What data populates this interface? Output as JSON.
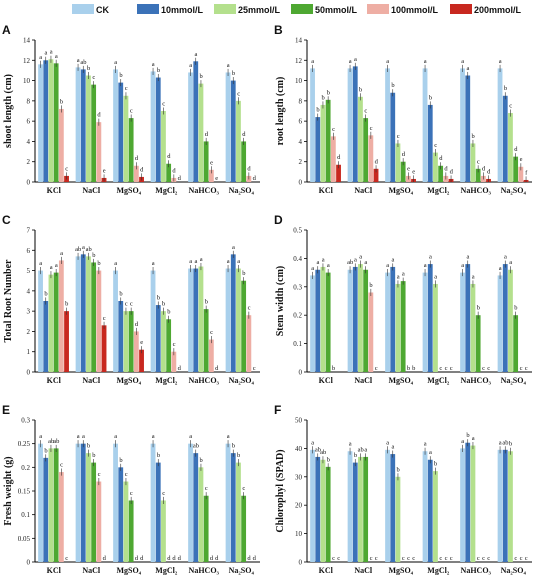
{
  "treatments": [
    "CK",
    "10mmol/L",
    "25mmol/L",
    "50mmol/L",
    "100mmol/L",
    "200mmol/L"
  ],
  "colors": [
    "#a9d0ec",
    "#3b72b8",
    "#b4e08d",
    "#4ea832",
    "#eeaea4",
    "#c8281f"
  ],
  "categories": [
    "KCl",
    "NaCl",
    "MgSO₄",
    "MgCl₂",
    "NaHCO₃",
    "Na₂SO₄"
  ],
  "chart_data": [
    {
      "panel": "A",
      "type": "bar",
      "ylabel": "shoot length (cm)",
      "ylim": [
        0,
        14
      ],
      "yticks": [
        0,
        2,
        4,
        6,
        8,
        10,
        12,
        14
      ],
      "categories": [
        "KCl",
        "NaCl",
        "MgSO₄",
        "MgCl₂",
        "NaHCO₃",
        "Na₂SO₄"
      ],
      "series": [
        {
          "name": "CK",
          "values": [
            11.6,
            11.3,
            11.1,
            10.9,
            10.8,
            10.8
          ],
          "letters": [
            "a",
            "a",
            "a",
            "a",
            "a",
            "a"
          ]
        },
        {
          "name": "10mmol/L",
          "values": [
            12.0,
            11.1,
            9.8,
            10.3,
            11.9,
            10.0
          ],
          "letters": [
            "a",
            "ab",
            "b",
            "b",
            "a",
            "b"
          ]
        },
        {
          "name": "25mmol/L",
          "values": [
            12.1,
            10.5,
            8.5,
            7.0,
            9.7,
            8.0
          ],
          "letters": [
            "a",
            "b",
            "c",
            "c",
            "b",
            "c"
          ]
        },
        {
          "name": "50mmol/L",
          "values": [
            11.7,
            9.6,
            6.3,
            1.8,
            4.0,
            4.0
          ],
          "letters": [
            "a",
            "c",
            "c",
            "d",
            "d",
            "d"
          ]
        },
        {
          "name": "100mmol/L",
          "values": [
            7.2,
            5.9,
            1.6,
            0.4,
            1.2,
            0.6
          ],
          "letters": [
            "b",
            "d",
            "d",
            "d",
            "e",
            "d"
          ]
        },
        {
          "name": "200mmol/L",
          "values": [
            0.6,
            0.4,
            0.5,
            0.0,
            0.0,
            0.0
          ],
          "letters": [
            "c",
            "e",
            "d",
            "d",
            "e",
            "d"
          ]
        }
      ]
    },
    {
      "panel": "B",
      "type": "bar",
      "ylabel": "root length (cm)",
      "ylim": [
        0,
        14
      ],
      "yticks": [
        0,
        2,
        4,
        6,
        8,
        10,
        12,
        14
      ],
      "categories": [
        "KCl",
        "NaCl",
        "MgSO₄",
        "MgCl₂",
        "NaHCO₃",
        "Na₂SO₄"
      ],
      "series": [
        {
          "name": "CK",
          "values": [
            11.2,
            11.2,
            11.2,
            11.2,
            11.2,
            11.2
          ],
          "letters": [
            "a",
            "a",
            "a",
            "a",
            "a",
            "a"
          ]
        },
        {
          "name": "10mmol/L",
          "values": [
            6.4,
            11.4,
            8.8,
            7.6,
            10.5,
            8.5
          ],
          "letters": [
            "b",
            "a",
            "b",
            "b",
            "a",
            "b"
          ]
        },
        {
          "name": "25mmol/L",
          "values": [
            7.6,
            8.4,
            3.8,
            2.9,
            3.8,
            6.8
          ],
          "letters": [
            "b",
            "b",
            "c",
            "c",
            "b",
            "c"
          ]
        },
        {
          "name": "50mmol/L",
          "values": [
            8.1,
            6.3,
            2.0,
            1.6,
            1.3,
            2.5
          ],
          "letters": [
            "b",
            "c",
            "d",
            "d",
            "c",
            "d"
          ]
        },
        {
          "name": "100mmol/L",
          "values": [
            4.5,
            4.6,
            0.6,
            0.6,
            0.6,
            1.5
          ],
          "letters": [
            "c",
            "c",
            "e",
            "d",
            "d",
            "e"
          ]
        },
        {
          "name": "200mmol/L",
          "values": [
            1.7,
            1.3,
            0.3,
            0.3,
            0.3,
            0.2
          ],
          "letters": [
            "d",
            "d",
            "e",
            "d",
            "d",
            "f"
          ]
        }
      ]
    },
    {
      "panel": "C",
      "type": "bar",
      "ylabel": "Total Root Number",
      "ylim": [
        0,
        7
      ],
      "yticks": [
        0,
        1,
        2,
        3,
        4,
        5,
        6,
        7
      ],
      "categories": [
        "KCl",
        "NaCl",
        "MgSO₄",
        "MgCl₂",
        "NaHCO₃",
        "Na₂SO₄"
      ],
      "series": [
        {
          "name": "CK",
          "values": [
            5.0,
            5.7,
            5.0,
            5.0,
            5.1,
            5.1
          ],
          "letters": [
            "a",
            "ab",
            "a",
            "a",
            "a",
            "a"
          ]
        },
        {
          "name": "10mmol/L",
          "values": [
            3.5,
            5.8,
            3.5,
            3.3,
            5.1,
            5.8
          ],
          "letters": [
            "b",
            "a",
            "b",
            "b",
            "a",
            "a"
          ]
        },
        {
          "name": "25mmol/L",
          "values": [
            4.8,
            5.7,
            3.0,
            3.0,
            5.2,
            5.1
          ],
          "letters": [
            "a",
            "ab",
            "c",
            "b",
            "a",
            "a"
          ]
        },
        {
          "name": "50mmol/L",
          "values": [
            4.9,
            5.4,
            3.0,
            2.6,
            3.1,
            4.5
          ],
          "letters": [
            "a",
            "b",
            "c",
            "b",
            "b",
            "b"
          ]
        },
        {
          "name": "100mmol/L",
          "values": [
            5.5,
            5.0,
            2.0,
            1.0,
            1.6,
            2.8
          ],
          "letters": [
            "a",
            "b",
            "d",
            "c",
            "c",
            "c"
          ]
        },
        {
          "name": "200mmol/L",
          "values": [
            3.0,
            2.3,
            1.1,
            0.0,
            0.0,
            0.0
          ],
          "letters": [
            "b",
            "c",
            "e",
            "d",
            "d",
            "c"
          ]
        }
      ]
    },
    {
      "panel": "D",
      "type": "bar",
      "ylabel": "Stem width (cm)",
      "ylim": [
        0,
        0.5
      ],
      "yticks": [
        0.0,
        0.1,
        0.2,
        0.3,
        0.4,
        0.5
      ],
      "categories": [
        "KCl",
        "NaCl",
        "MgSO₄",
        "MgCl₂",
        "NaHCO₃",
        "Na₂SO₄"
      ],
      "series": [
        {
          "name": "CK",
          "values": [
            0.34,
            0.36,
            0.35,
            0.35,
            0.35,
            0.34
          ],
          "letters": [
            "a",
            "ab",
            "a",
            "a",
            "a",
            "a"
          ]
        },
        {
          "name": "10mmol/L",
          "values": [
            0.36,
            0.37,
            0.37,
            0.38,
            0.38,
            0.38
          ],
          "letters": [
            "a",
            "a",
            "a",
            "a",
            "a",
            "a"
          ]
        },
        {
          "name": "25mmol/L",
          "values": [
            0.37,
            0.38,
            0.31,
            0.31,
            0.31,
            0.36
          ],
          "letters": [
            "a",
            "a",
            "a",
            "a",
            "a",
            "a"
          ]
        },
        {
          "name": "50mmol/L",
          "values": [
            0.35,
            0.36,
            0.32,
            0.0,
            0.2,
            0.2
          ],
          "letters": [
            "a",
            "a",
            "a",
            "c",
            "b",
            "b"
          ]
        },
        {
          "name": "100mmol/L",
          "values": [
            0.0,
            0.28,
            0.0,
            0.0,
            0.0,
            0.0
          ],
          "letters": [
            "b",
            "b",
            "b",
            "c",
            "c",
            "c"
          ]
        },
        {
          "name": "200mmol/L",
          "values": [
            0.0,
            0.0,
            0.0,
            0.0,
            0.0,
            0.0
          ],
          "letters": [
            "",
            "c",
            "b",
            "c",
            "c",
            "c"
          ]
        }
      ]
    },
    {
      "panel": "E",
      "type": "bar",
      "ylabel": "Fresh weight (g)",
      "ylim": [
        0,
        0.3
      ],
      "yticks": [
        0.0,
        0.05,
        0.1,
        0.15,
        0.2,
        0.25,
        0.3
      ],
      "categories": [
        "KCl",
        "NaCl",
        "MgSO₄",
        "MgCl₂",
        "NaHCO₃",
        "Na₂SO₄"
      ],
      "series": [
        {
          "name": "CK",
          "values": [
            0.25,
            0.25,
            0.25,
            0.25,
            0.25,
            0.25
          ],
          "letters": [
            "a",
            "a",
            "a",
            "a",
            "a",
            "a"
          ]
        },
        {
          "name": "10mmol/L",
          "values": [
            0.22,
            0.25,
            0.2,
            0.21,
            0.23,
            0.23
          ],
          "letters": [
            "b",
            "a",
            "b",
            "b",
            "ab",
            "b"
          ]
        },
        {
          "name": "25mmol/L",
          "values": [
            0.24,
            0.23,
            0.17,
            0.13,
            0.2,
            0.21
          ],
          "letters": [
            "ab",
            "b",
            "c",
            "c",
            "b",
            "b"
          ]
        },
        {
          "name": "50mmol/L",
          "values": [
            0.24,
            0.21,
            0.13,
            0.0,
            0.14,
            0.14
          ],
          "letters": [
            "ab",
            "b",
            "c",
            "d",
            "c",
            "c"
          ]
        },
        {
          "name": "100mmol/L",
          "values": [
            0.19,
            0.17,
            0.0,
            0.0,
            0.0,
            0.0
          ],
          "letters": [
            "c",
            "c",
            "d",
            "d",
            "d",
            "d"
          ]
        },
        {
          "name": "200mmol/L",
          "values": [
            0.0,
            0.0,
            0.0,
            0.0,
            0.0,
            0.0
          ],
          "letters": [
            "c",
            "d",
            "d",
            "d",
            "d",
            "d"
          ]
        }
      ]
    },
    {
      "panel": "F",
      "type": "bar",
      "ylabel": "Chlorophyl (SPAD)",
      "ylim": [
        0,
        50
      ],
      "yticks": [
        0,
        10,
        20,
        30,
        40,
        50
      ],
      "categories": [
        "KCl",
        "NaCl",
        "MgSO₄",
        "MgCl₂",
        "NaHCO₃",
        "Na₂SO₄"
      ],
      "series": [
        {
          "name": "CK",
          "values": [
            39.5,
            39.0,
            39.5,
            39.0,
            40.0,
            39.5
          ],
          "letters": [
            "a",
            "a",
            "a",
            "a",
            "a",
            "a"
          ]
        },
        {
          "name": "10mmol/L",
          "values": [
            37.0,
            35.0,
            38.0,
            36.0,
            42.0,
            39.5
          ],
          "letters": [
            "ab",
            "b",
            "a",
            "a",
            "b",
            "ab"
          ]
        },
        {
          "name": "25mmol/L",
          "values": [
            36.0,
            37.0,
            30.0,
            32.0,
            41.0,
            39.0
          ],
          "letters": [
            "ab",
            "ab",
            "b",
            "b",
            "a",
            "b"
          ]
        },
        {
          "name": "50mmol/L",
          "values": [
            33.5,
            37.0,
            0.0,
            0.0,
            0.0,
            0.0
          ],
          "letters": [
            "b",
            "a",
            "c",
            "c",
            "c",
            "c"
          ]
        },
        {
          "name": "100mmol/L",
          "values": [
            0.0,
            0.0,
            0.0,
            0.0,
            0.0,
            0.0
          ],
          "letters": [
            "c",
            "c",
            "c",
            "c",
            "c",
            "c"
          ]
        },
        {
          "name": "200mmol/L",
          "values": [
            0.0,
            0.0,
            0.0,
            0.0,
            0.0,
            0.0
          ],
          "letters": [
            "c",
            "c",
            "c",
            "c",
            "c",
            "c"
          ]
        }
      ]
    }
  ]
}
